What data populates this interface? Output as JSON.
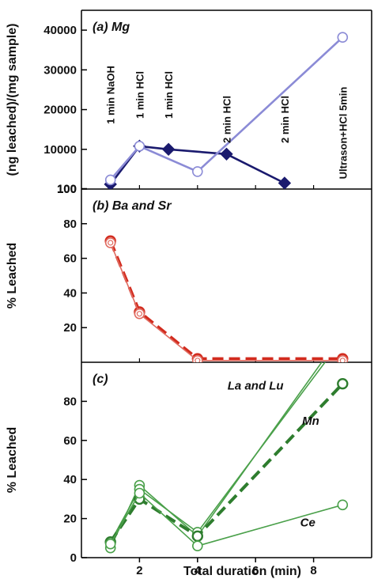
{
  "chart_data": [
    {
      "type": "line",
      "title": "(a) Mg",
      "ylabel": "(ng leached)/(mg sample)",
      "xlim": [
        0,
        10
      ],
      "ylim": [
        0,
        45000
      ],
      "yticks": [
        100,
        10000,
        20000,
        30000,
        40000
      ],
      "ytick_labels": [
        "100",
        "10000",
        "20000",
        "30000",
        "40000"
      ],
      "grid": false,
      "series": [
        {
          "x": [
            1,
            2,
            3,
            5,
            7
          ],
          "y": [
            1200,
            10800,
            10000,
            8800,
            1500
          ],
          "color": "#1a1a6e",
          "marker": "diamond"
        },
        {
          "x": [
            1,
            2,
            4,
            9
          ],
          "y": [
            2300,
            10800,
            4400,
            38200
          ],
          "color": "#8b8bd6",
          "marker": "circle"
        }
      ],
      "annotations": [
        {
          "text": "1 min NaOH",
          "x": 1
        },
        {
          "text": "1 min HCl",
          "x": 2
        },
        {
          "text": "1 min HCl",
          "x": 3
        },
        {
          "text": "2 min HCl",
          "x": 5
        },
        {
          "text": "2 min HCl",
          "x": 7
        },
        {
          "text": "Ultrason+HCl 5min",
          "x": 9
        }
      ]
    },
    {
      "type": "line",
      "title": "(b) Ba and Sr",
      "ylabel": "% Leached",
      "xlim": [
        0,
        10
      ],
      "ylim": [
        0,
        100
      ],
      "yticks": [
        20,
        40,
        60,
        80,
        100
      ],
      "ytick_labels": [
        "20",
        "40",
        "60",
        "80",
        "100"
      ],
      "grid": false,
      "series": [
        {
          "x": [
            1,
            2,
            4,
            9
          ],
          "y": [
            70,
            29,
            2,
            2
          ],
          "color": "#d22b1e",
          "marker": "circle",
          "dash": true
        },
        {
          "x": [
            1,
            2,
            4,
            9
          ],
          "y": [
            69,
            28,
            1,
            1
          ],
          "color": "#e06b60",
          "marker": "circle",
          "dash": false
        }
      ]
    },
    {
      "type": "line",
      "title": "(c)",
      "ylabel": "% Leached",
      "xlabel": "Total duration (min)",
      "xlim": [
        0,
        10
      ],
      "ylim": [
        0,
        100
      ],
      "xticks": [
        2,
        4,
        6,
        8
      ],
      "xtick_labels": [
        "2",
        "4",
        "6",
        "8"
      ],
      "yticks": [
        0,
        20,
        40,
        60,
        80
      ],
      "ytick_labels": [
        "0",
        "20",
        "40",
        "60",
        "80"
      ],
      "grid": false,
      "series": [
        {
          "name": "La and Lu",
          "x": [
            1,
            2,
            4,
            9
          ],
          "y": [
            5,
            37,
            11,
            115
          ],
          "color": "#4aa04a",
          "marker": "circle",
          "dash": false
        },
        {
          "name": "La and Lu",
          "x": [
            1,
            2,
            4,
            9
          ],
          "y": [
            8,
            35,
            13,
            112
          ],
          "color": "#4aa04a",
          "marker": "circle",
          "dash": false
        },
        {
          "name": "Mn",
          "x": [
            1,
            2,
            4,
            9
          ],
          "y": [
            8,
            30,
            11,
            89
          ],
          "color": "#2e7d2e",
          "marker": "circle",
          "dash": true
        },
        {
          "name": "Ce",
          "x": [
            1,
            2,
            4,
            9
          ],
          "y": [
            7,
            33,
            6,
            27
          ],
          "color": "#4aa04a",
          "marker": "circle",
          "dash": false
        }
      ],
      "labels": [
        {
          "text": "La and Lu",
          "x": 6.0,
          "y": 86
        },
        {
          "text": "Mn",
          "x": 7.9,
          "y": 68
        },
        {
          "text": "Ce",
          "x": 7.8,
          "y": 16
        }
      ]
    }
  ]
}
